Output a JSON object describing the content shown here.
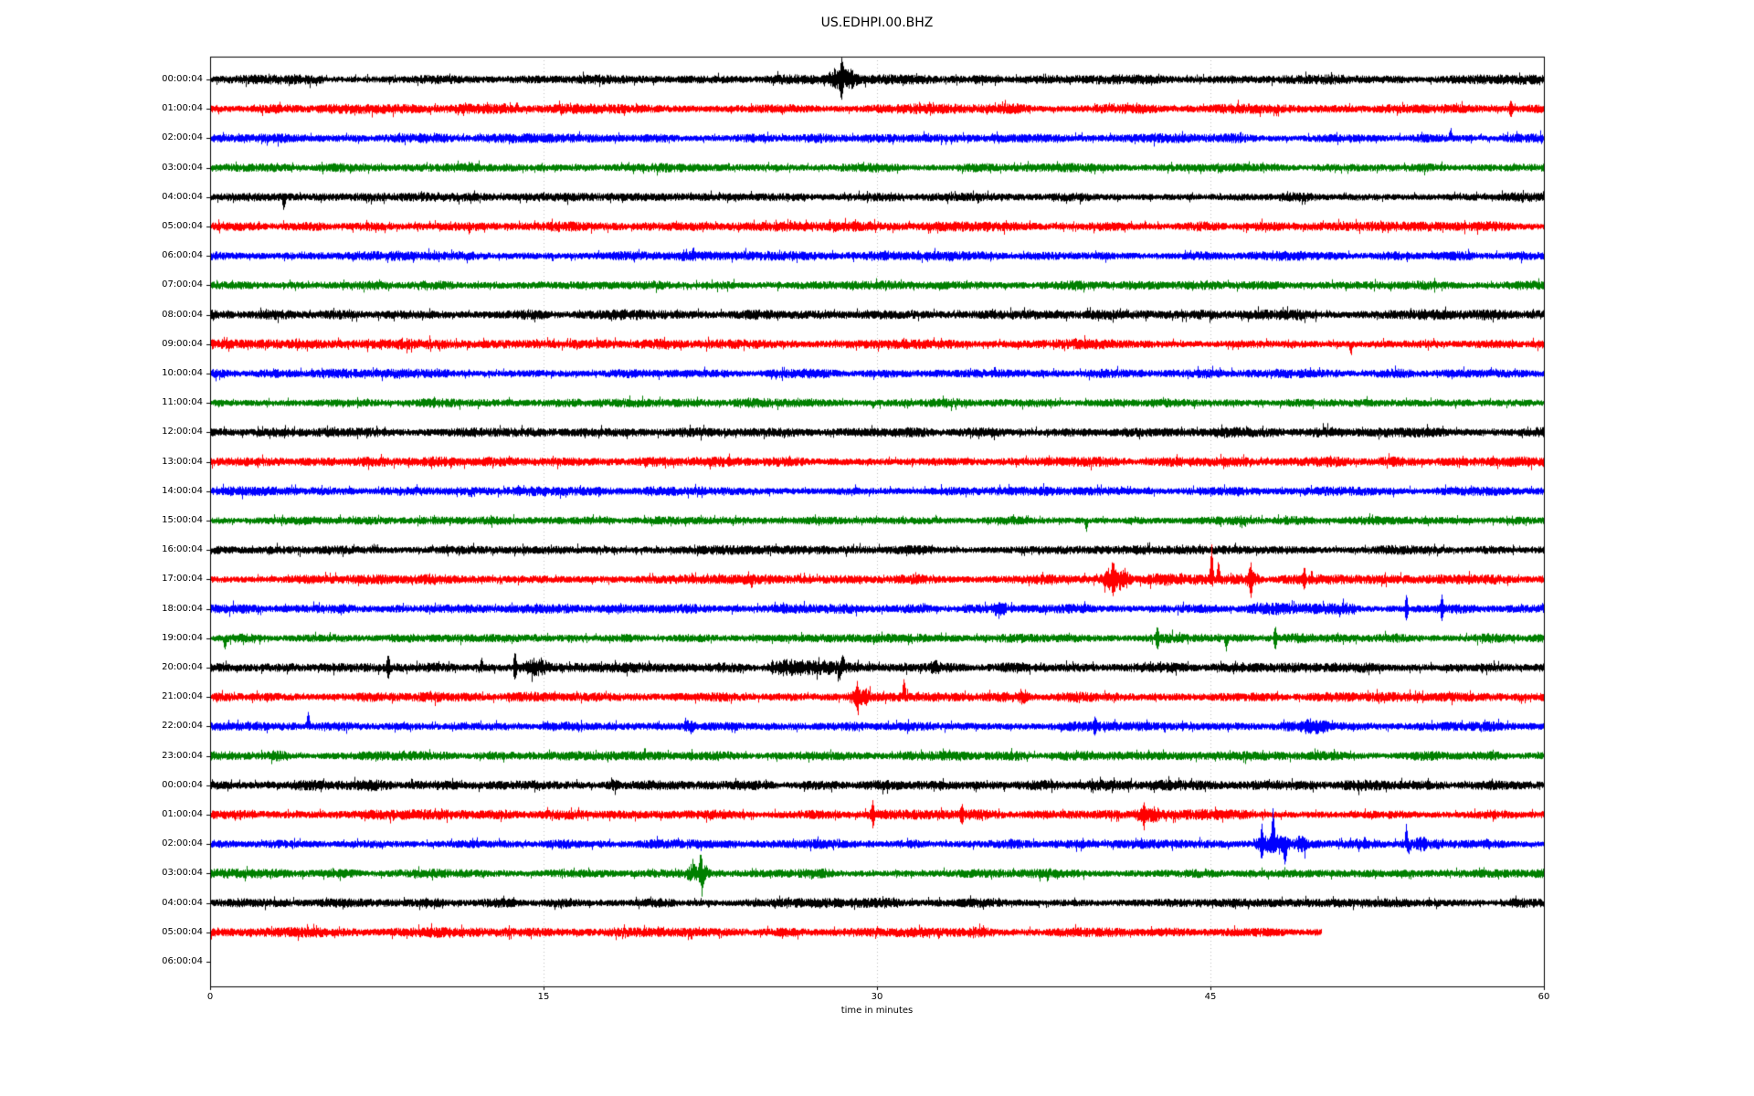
{
  "figure": {
    "title": "US.EDHPI.00.BHZ",
    "xlabel": "time in minutes"
  },
  "chart_data": {
    "type": "line",
    "subtype": "seismogram-helicorder-dayplot",
    "title": "US.EDHPI.00.BHZ",
    "xlabel": "time in minutes",
    "ylabel": "",
    "x_range_minutes": [
      0,
      60
    ],
    "x_ticks": [
      0,
      15,
      30,
      45,
      60
    ],
    "grid_minutes": [
      15,
      30,
      45
    ],
    "grid_style": "dotted",
    "legend_position": "none",
    "trace_color_cycle": [
      "#000000",
      "#ff0000",
      "#0000ff",
      "#008000"
    ],
    "rows": [
      {
        "label": "00:00:04",
        "color": "#000000",
        "coverage_minutes": 60,
        "noise_amp": 4.6,
        "events": [
          {
            "t0": 27.7,
            "t1": 29.2,
            "amp": 2.6
          }
        ],
        "spikes": [
          {
            "t": 28.4,
            "amp": 3.2,
            "dir": 0
          }
        ]
      },
      {
        "label": "01:00:04",
        "color": "#ff0000",
        "coverage_minutes": 60,
        "noise_amp": 4.8,
        "events": [],
        "spikes": [
          {
            "t": 58.5,
            "amp": 1.8,
            "dir": 0
          }
        ]
      },
      {
        "label": "02:00:04",
        "color": "#0000ff",
        "coverage_minutes": 60,
        "noise_amp": 4.5,
        "events": [],
        "spikes": [
          {
            "t": 55.8,
            "amp": 2.0,
            "dir": 1
          }
        ]
      },
      {
        "label": "03:00:04",
        "color": "#008000",
        "coverage_minutes": 60,
        "noise_amp": 4.4,
        "events": [],
        "spikes": []
      },
      {
        "label": "04:00:04",
        "color": "#000000",
        "coverage_minutes": 60,
        "noise_amp": 4.4,
        "events": [],
        "spikes": [
          {
            "t": 3.3,
            "amp": 3.0,
            "dir": -1
          }
        ]
      },
      {
        "label": "05:00:04",
        "color": "#ff0000",
        "coverage_minutes": 60,
        "noise_amp": 4.7,
        "events": [],
        "spikes": []
      },
      {
        "label": "06:00:04",
        "color": "#0000ff",
        "coverage_minutes": 60,
        "noise_amp": 4.6,
        "events": [],
        "spikes": []
      },
      {
        "label": "07:00:04",
        "color": "#008000",
        "coverage_minutes": 60,
        "noise_amp": 4.4,
        "events": [],
        "spikes": []
      },
      {
        "label": "08:00:04",
        "color": "#000000",
        "coverage_minutes": 60,
        "noise_amp": 5.0,
        "events": [],
        "spikes": []
      },
      {
        "label": "09:00:04",
        "color": "#ff0000",
        "coverage_minutes": 60,
        "noise_amp": 4.7,
        "events": [],
        "spikes": [
          {
            "t": 51.3,
            "amp": 2.0,
            "dir": -1
          }
        ]
      },
      {
        "label": "10:00:04",
        "color": "#0000ff",
        "coverage_minutes": 60,
        "noise_amp": 4.6,
        "events": [],
        "spikes": []
      },
      {
        "label": "11:00:04",
        "color": "#008000",
        "coverage_minutes": 60,
        "noise_amp": 4.3,
        "events": [],
        "spikes": []
      },
      {
        "label": "12:00:04",
        "color": "#000000",
        "coverage_minutes": 60,
        "noise_amp": 5.0,
        "events": [],
        "spikes": []
      },
      {
        "label": "13:00:04",
        "color": "#ff0000",
        "coverage_minutes": 60,
        "noise_amp": 4.8,
        "events": [],
        "spikes": []
      },
      {
        "label": "14:00:04",
        "color": "#0000ff",
        "coverage_minutes": 60,
        "noise_amp": 4.6,
        "events": [],
        "spikes": []
      },
      {
        "label": "15:00:04",
        "color": "#008000",
        "coverage_minutes": 60,
        "noise_amp": 4.3,
        "events": [],
        "spikes": [
          {
            "t": 39.4,
            "amp": 2.8,
            "dir": -1
          }
        ]
      },
      {
        "label": "16:00:04",
        "color": "#000000",
        "coverage_minutes": 60,
        "noise_amp": 4.4,
        "events": [],
        "spikes": []
      },
      {
        "label": "17:00:04",
        "color": "#ff0000",
        "coverage_minutes": 60,
        "noise_amp": 4.8,
        "events": [
          {
            "t0": 40.0,
            "t1": 41.5,
            "amp": 2.8
          },
          {
            "t0": 41.6,
            "t1": 44.0,
            "amp": 1.4
          },
          {
            "t0": 46.5,
            "t1": 47.3,
            "amp": 2.0
          }
        ],
        "spikes": [
          {
            "t": 40.6,
            "amp": 2.8,
            "dir": 0
          },
          {
            "t": 45.04,
            "amp": 7.0,
            "dir": 1
          },
          {
            "t": 45.35,
            "amp": 3.5,
            "dir": 1
          },
          {
            "t": 46.8,
            "amp": 2.5,
            "dir": 0
          },
          {
            "t": 49.2,
            "amp": 2.2,
            "dir": 0
          }
        ]
      },
      {
        "label": "18:00:04",
        "color": "#0000ff",
        "coverage_minutes": 60,
        "noise_amp": 4.6,
        "events": [
          {
            "t0": 35.1,
            "t1": 35.9,
            "amp": 1.7
          },
          {
            "t0": 46.5,
            "t1": 52.0,
            "amp": 1.4
          },
          {
            "t0": 50.6,
            "t1": 51.6,
            "amp": 1.8
          }
        ],
        "spikes": [
          {
            "t": 53.8,
            "amp": 2.9,
            "dir": 0
          },
          {
            "t": 55.4,
            "amp": 2.6,
            "dir": 0
          }
        ]
      },
      {
        "label": "19:00:04",
        "color": "#008000",
        "coverage_minutes": 60,
        "noise_amp": 4.4,
        "events": [],
        "spikes": [
          {
            "t": 0.65,
            "amp": 2.6,
            "dir": -1
          },
          {
            "t": 42.6,
            "amp": 2.5,
            "dir": 0
          },
          {
            "t": 45.7,
            "amp": 2.6,
            "dir": -1
          },
          {
            "t": 47.9,
            "amp": 2.5,
            "dir": 0
          }
        ]
      },
      {
        "label": "20:00:04",
        "color": "#000000",
        "coverage_minutes": 60,
        "noise_amp": 4.6,
        "events": [
          {
            "t0": 14.0,
            "t1": 15.3,
            "amp": 2.0
          },
          {
            "t0": 24.9,
            "t1": 28.7,
            "amp": 1.7
          },
          {
            "t0": 32.3,
            "t1": 32.9,
            "amp": 1.6
          }
        ],
        "spikes": [
          {
            "t": 8.0,
            "amp": 2.6,
            "dir": 0
          },
          {
            "t": 12.2,
            "amp": 2.2,
            "dir": 1
          },
          {
            "t": 13.7,
            "amp": 3.2,
            "dir": 0
          },
          {
            "t": 28.3,
            "amp": 2.6,
            "dir": -1
          },
          {
            "t": 28.45,
            "amp": 2.6,
            "dir": 1
          }
        ]
      },
      {
        "label": "21:00:04",
        "color": "#ff0000",
        "coverage_minutes": 60,
        "noise_amp": 4.8,
        "events": [
          {
            "t0": 28.6,
            "t1": 29.8,
            "amp": 2.2
          },
          {
            "t0": 36.3,
            "t1": 36.8,
            "amp": 1.8
          }
        ],
        "spikes": [
          {
            "t": 29.1,
            "amp": 2.4,
            "dir": 0
          },
          {
            "t": 31.2,
            "amp": 3.8,
            "dir": 1
          }
        ]
      },
      {
        "label": "22:00:04",
        "color": "#0000ff",
        "coverage_minutes": 60,
        "noise_amp": 4.6,
        "events": [
          {
            "t0": 21.2,
            "t1": 21.9,
            "amp": 2.0
          },
          {
            "t0": 49.0,
            "t1": 50.4,
            "amp": 1.7
          }
        ],
        "spikes": [
          {
            "t": 4.4,
            "amp": 3.2,
            "dir": 1
          },
          {
            "t": 39.8,
            "amp": 1.8,
            "dir": 0
          }
        ]
      },
      {
        "label": "23:00:04",
        "color": "#008000",
        "coverage_minutes": 60,
        "noise_amp": 4.4,
        "events": [
          {
            "t0": 2.5,
            "t1": 3.5,
            "amp": 1.4
          }
        ],
        "spikes": []
      },
      {
        "label": "00:00:04",
        "color": "#000000",
        "coverage_minutes": 60,
        "noise_amp": 5.2,
        "events": [
          {
            "t0": 17.8,
            "t1": 18.4,
            "amp": 1.6
          }
        ],
        "spikes": []
      },
      {
        "label": "01:00:04",
        "color": "#ff0000",
        "coverage_minutes": 60,
        "noise_amp": 4.8,
        "events": [
          {
            "t0": 41.4,
            "t1": 42.8,
            "amp": 2.1
          }
        ],
        "spikes": [
          {
            "t": 29.8,
            "amp": 2.4,
            "dir": 0
          },
          {
            "t": 33.8,
            "amp": 1.7,
            "dir": 0
          },
          {
            "t": 42.0,
            "amp": 2.2,
            "dir": 0
          }
        ]
      },
      {
        "label": "02:00:04",
        "color": "#0000ff",
        "coverage_minutes": 60,
        "noise_amp": 4.6,
        "events": [
          {
            "t0": 46.9,
            "t1": 48.6,
            "amp": 2.6
          },
          {
            "t0": 48.8,
            "t1": 49.4,
            "amp": 1.8
          },
          {
            "t0": 54.2,
            "t1": 54.7,
            "amp": 1.6
          }
        ],
        "spikes": [
          {
            "t": 47.3,
            "amp": 3.0,
            "dir": 0
          },
          {
            "t": 47.8,
            "amp": 7.0,
            "dir": 1
          },
          {
            "t": 48.35,
            "amp": 4.2,
            "dir": -1
          },
          {
            "t": 53.8,
            "amp": 4.2,
            "dir": 1
          },
          {
            "t": 53.9,
            "amp": 2.5,
            "dir": -1
          }
        ]
      },
      {
        "label": "03:00:04",
        "color": "#008000",
        "coverage_minutes": 60,
        "noise_amp": 4.4,
        "events": [
          {
            "t0": 21.3,
            "t1": 22.5,
            "amp": 2.2
          }
        ],
        "spikes": [
          {
            "t": 22.05,
            "amp": 3.6,
            "dir": 1
          },
          {
            "t": 22.12,
            "amp": 4.4,
            "dir": -1
          }
        ]
      },
      {
        "label": "04:00:04",
        "color": "#000000",
        "coverage_minutes": 60,
        "noise_amp": 4.6,
        "events": [],
        "spikes": []
      },
      {
        "label": "05:00:04",
        "color": "#ff0000",
        "coverage_minutes": 50,
        "noise_amp": 4.8,
        "events": [],
        "spikes": []
      },
      {
        "label": "06:00:04",
        "color": "#0000ff",
        "coverage_minutes": 0,
        "noise_amp": 0,
        "events": [],
        "spikes": []
      }
    ]
  }
}
